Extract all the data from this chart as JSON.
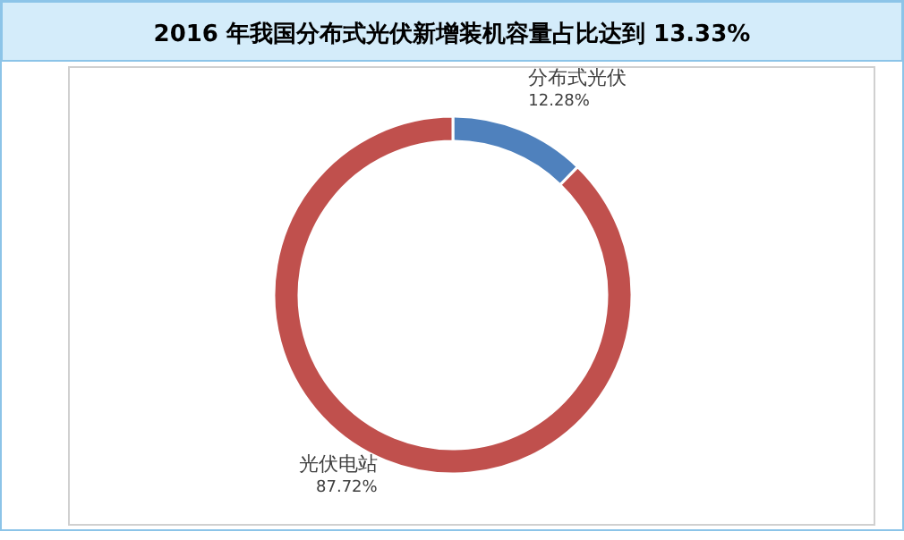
{
  "chart_data": {
    "type": "donut",
    "title": "2016 年我国分布式光伏新增装机容量占比达到 13.33%",
    "categories": [
      "分布式光伏",
      "光伏电站"
    ],
    "values": [
      12.28,
      87.72
    ],
    "value_labels": [
      "12.28%",
      "87.72%"
    ],
    "colors": [
      "#4f81bd",
      "#c0504d"
    ]
  }
}
